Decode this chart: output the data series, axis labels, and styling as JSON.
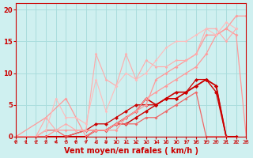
{
  "title": "",
  "xlabel": "Vent moyen/en rafales ( km/h )",
  "background_color": "#cff0f0",
  "grid_color": "#aadddd",
  "xlim": [
    0,
    23
  ],
  "ylim": [
    0,
    21
  ],
  "yticks": [
    0,
    5,
    10,
    15,
    20
  ],
  "xticks": [
    0,
    1,
    2,
    3,
    4,
    5,
    6,
    7,
    8,
    9,
    10,
    11,
    12,
    13,
    14,
    15,
    16,
    17,
    18,
    19,
    20,
    21,
    22,
    23
  ],
  "lines": [
    {
      "x": [
        0,
        3,
        5,
        7,
        8,
        9,
        10,
        11,
        12,
        13,
        14,
        15,
        16,
        17,
        18,
        19,
        20,
        21,
        22
      ],
      "y": [
        0,
        0,
        0,
        0,
        1,
        1,
        2,
        3,
        4,
        6,
        5,
        6,
        7,
        7,
        8,
        9,
        8,
        0,
        0
      ],
      "color": "#cc0000",
      "lw": 1.2,
      "marker": "D",
      "ms": 2.5
    },
    {
      "x": [
        0,
        3,
        5,
        7,
        8,
        9,
        10,
        11,
        12,
        13,
        14,
        15,
        16,
        17,
        18,
        19,
        20,
        21,
        22
      ],
      "y": [
        0,
        0,
        0,
        0,
        1,
        1,
        2,
        2,
        3,
        4,
        5,
        6,
        6,
        7,
        8,
        9,
        7,
        0,
        0
      ],
      "color": "#cc0000",
      "lw": 1.0,
      "marker": "D",
      "ms": 2.5
    },
    {
      "x": [
        0,
        3,
        5,
        7,
        8,
        9,
        10,
        11,
        12,
        13,
        14,
        15,
        16,
        17,
        18,
        19,
        20,
        21
      ],
      "y": [
        0,
        0,
        0,
        1,
        2,
        2,
        3,
        4,
        5,
        5,
        5,
        6,
        6,
        7,
        9,
        9,
        8,
        0
      ],
      "color": "#cc0000",
      "lw": 0.9,
      "marker": "D",
      "ms": 2.5
    },
    {
      "x": [
        0,
        2,
        3,
        4,
        5,
        7,
        8,
        9,
        10,
        11,
        12,
        13,
        14,
        15,
        16,
        17,
        18,
        19,
        21
      ],
      "y": [
        0,
        0,
        1,
        1,
        0,
        1,
        1,
        1,
        2,
        2,
        2,
        3,
        3,
        4,
        5,
        6,
        7,
        0,
        0
      ],
      "color": "#ee6666",
      "lw": 0.9,
      "marker": "D",
      "ms": 2.0
    },
    {
      "x": [
        0,
        3,
        5,
        7,
        8,
        10,
        11,
        12,
        13,
        14,
        15,
        16,
        17,
        18,
        19,
        20,
        21,
        22,
        23
      ],
      "y": [
        0,
        3,
        6,
        0,
        1,
        1,
        3,
        4,
        5,
        9,
        10,
        11,
        12,
        13,
        16,
        16,
        17,
        19,
        19
      ],
      "color": "#ff9999",
      "lw": 0.9,
      "marker": "D",
      "ms": 2.0
    },
    {
      "x": [
        0,
        3,
        4,
        5,
        6,
        7,
        8,
        9,
        10,
        11,
        12,
        13,
        14,
        15,
        16,
        17,
        18,
        19,
        20,
        21,
        22,
        23
      ],
      "y": [
        0,
        0,
        1,
        1,
        1,
        1,
        1,
        1,
        2,
        3,
        4,
        6,
        7,
        8,
        9,
        10,
        11,
        13,
        16,
        17,
        16,
        0
      ],
      "color": "#ff9999",
      "lw": 0.9,
      "marker": "D",
      "ms": 2.0
    },
    {
      "x": [
        0,
        2,
        3,
        4,
        5,
        6,
        7,
        8,
        9,
        10,
        11,
        12,
        13,
        14,
        15,
        16,
        17,
        18,
        19,
        20,
        21,
        22
      ],
      "y": [
        0,
        0,
        3,
        1,
        2,
        1,
        1,
        13,
        9,
        8,
        13,
        9,
        12,
        11,
        11,
        12,
        12,
        13,
        17,
        17,
        15,
        17
      ],
      "color": "#ffaaaa",
      "lw": 0.8,
      "marker": "D",
      "ms": 1.8
    },
    {
      "x": [
        0,
        2,
        3,
        4,
        5,
        6,
        7,
        8,
        9,
        10,
        11,
        12,
        13,
        14,
        15,
        16,
        17,
        18,
        19,
        20,
        21,
        22
      ],
      "y": [
        0,
        0,
        1,
        6,
        3,
        3,
        2,
        9,
        4,
        8,
        10,
        9,
        10,
        12,
        14,
        15,
        15,
        16,
        17,
        16,
        18,
        17
      ],
      "color": "#ffbbbb",
      "lw": 0.8,
      "marker": "D",
      "ms": 1.8
    }
  ],
  "arrow_color": "#cc0000",
  "xlabel_color": "#cc0000",
  "tick_color": "#cc0000",
  "axis_color": "#cc0000"
}
